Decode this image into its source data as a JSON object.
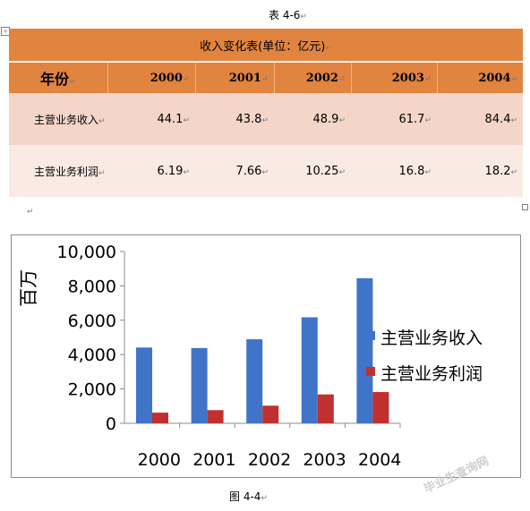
{
  "doc": {
    "table_caption": "表 4-6",
    "figure_caption": "图 4-4",
    "paragraph_mark": "↵",
    "anchor_mark": "+",
    "watermark": "毕业生查询网"
  },
  "table": {
    "title": "收入变化表(单位：亿元)",
    "year_header": "年份",
    "years": [
      "2000",
      "2001",
      "2002",
      "2003",
      "2004"
    ],
    "rows": [
      {
        "label": "主营业务收入",
        "values": [
          "44.1",
          "43.8",
          "48.9",
          "61.7",
          "84.4"
        ]
      },
      {
        "label": "主营业务利润",
        "values": [
          "6.19",
          "7.66",
          "10.25",
          "16.8",
          "18.2"
        ]
      }
    ]
  },
  "colors": {
    "header": "#e1843f",
    "row1": "#f4d6c8",
    "row2": "#f9eae3",
    "series_revenue": "#3f74c9",
    "series_profit": "#c0302e"
  },
  "chart_data": {
    "type": "bar",
    "categories": [
      "2000",
      "2001",
      "2002",
      "2003",
      "2004"
    ],
    "series": [
      {
        "name": "主营业务收入",
        "values": [
          4410,
          4380,
          4890,
          6170,
          8440
        ]
      },
      {
        "name": "主营业务利润",
        "values": [
          619,
          766,
          1025,
          1680,
          1820
        ]
      }
    ],
    "title": "",
    "xlabel": "",
    "ylabel": "百万",
    "ylim": [
      0,
      10000
    ],
    "yticks": [
      "0",
      "2,000",
      "4,000",
      "6,000",
      "8,000",
      "10,000"
    ],
    "grid": false,
    "legend": "right"
  }
}
